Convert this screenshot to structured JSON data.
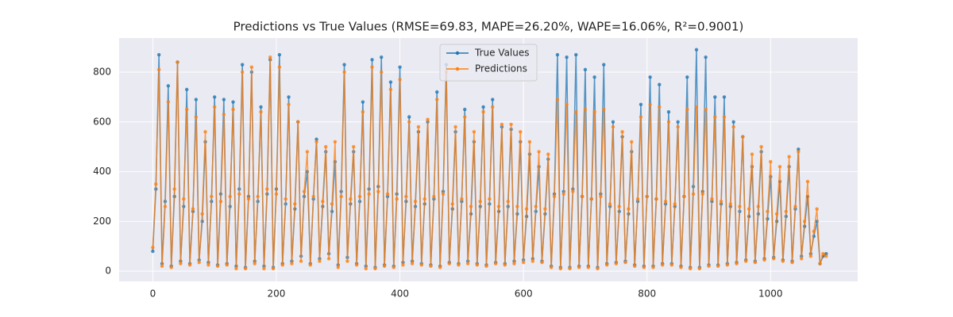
{
  "chart_data": {
    "type": "line",
    "title": "Predictions vs True Values (RMSE=69.83, MAPE=26.20%, WAPE=16.06%, R²=0.9001)",
    "x": [
      0,
      5,
      10,
      15,
      20,
      25,
      30,
      35,
      40,
      45,
      50,
      55,
      60,
      65,
      70,
      75,
      80,
      85,
      90,
      95,
      100,
      105,
      110,
      115,
      120,
      125,
      130,
      135,
      140,
      145,
      150,
      155,
      160,
      165,
      170,
      175,
      180,
      185,
      190,
      195,
      200,
      205,
      210,
      215,
      220,
      225,
      230,
      235,
      240,
      245,
      250,
      255,
      260,
      265,
      270,
      275,
      280,
      285,
      290,
      295,
      300,
      305,
      310,
      315,
      320,
      325,
      330,
      335,
      340,
      345,
      350,
      355,
      360,
      365,
      370,
      375,
      380,
      385,
      390,
      395,
      400,
      405,
      410,
      415,
      420,
      425,
      430,
      435,
      440,
      445,
      450,
      455,
      460,
      465,
      470,
      475,
      480,
      485,
      490,
      495,
      500,
      505,
      510,
      515,
      520,
      525,
      530,
      535,
      540,
      545,
      550,
      555,
      560,
      565,
      570,
      575,
      580,
      585,
      590,
      595,
      600,
      605,
      610,
      615,
      620,
      625,
      630,
      635,
      640,
      645,
      650,
      655,
      660,
      665,
      670,
      675,
      680,
      685,
      690,
      695,
      700,
      705,
      710,
      715,
      720,
      725,
      730,
      735,
      740,
      745,
      750,
      755,
      760,
      765,
      770,
      775,
      780,
      785,
      790,
      795,
      800,
      805,
      810,
      815,
      820,
      825,
      830,
      835,
      840,
      845,
      850,
      855,
      860,
      865,
      870,
      875,
      880,
      885,
      890,
      895,
      900,
      905,
      910,
      915,
      920,
      925,
      930,
      935,
      940,
      945,
      950,
      955,
      960,
      965,
      970,
      975,
      980,
      985,
      990,
      995,
      1000,
      1005,
      1010,
      1015,
      1020,
      1025,
      1030,
      1035,
      1040,
      1045,
      1050,
      1055,
      1060,
      1065,
      1070,
      1075,
      1080,
      1085,
      1090
    ],
    "series": [
      {
        "name": "True Values",
        "color": "#1f77b4",
        "values": [
          80,
          330,
          870,
          30,
          280,
          745,
          20,
          300,
          840,
          40,
          260,
          730,
          30,
          240,
          690,
          45,
          200,
          520,
          35,
          280,
          700,
          25,
          310,
          690,
          30,
          260,
          680,
          20,
          330,
          830,
          15,
          300,
          800,
          40,
          280,
          660,
          20,
          310,
          850,
          15,
          330,
          870,
          30,
          270,
          700,
          40,
          250,
          600,
          60,
          300,
          400,
          30,
          290,
          530,
          50,
          260,
          480,
          70,
          240,
          440,
          25,
          320,
          830,
          55,
          270,
          480,
          30,
          280,
          680,
          20,
          330,
          850,
          15,
          340,
          860,
          25,
          300,
          760,
          20,
          310,
          820,
          35,
          280,
          620,
          40,
          260,
          560,
          30,
          270,
          600,
          25,
          290,
          720,
          20,
          320,
          830,
          35,
          250,
          560,
          30,
          280,
          650,
          40,
          230,
          520,
          30,
          260,
          660,
          25,
          270,
          690,
          35,
          240,
          580,
          30,
          260,
          570,
          40,
          230,
          520,
          45,
          220,
          470,
          50,
          240,
          420,
          40,
          230,
          450,
          20,
          310,
          870,
          15,
          320,
          860,
          15,
          330,
          870,
          20,
          300,
          810,
          20,
          290,
          780,
          15,
          310,
          830,
          30,
          260,
          600,
          35,
          240,
          540,
          40,
          230,
          480,
          25,
          280,
          670,
          20,
          300,
          780,
          20,
          290,
          750,
          30,
          270,
          640,
          30,
          260,
          600,
          20,
          300,
          780,
          15,
          340,
          890,
          15,
          320,
          860,
          25,
          280,
          700,
          25,
          270,
          700,
          30,
          260,
          600,
          35,
          240,
          540,
          45,
          220,
          420,
          40,
          230,
          480,
          50,
          210,
          380,
          55,
          200,
          360,
          45,
          220,
          420,
          40,
          250,
          490,
          60,
          180,
          300,
          70,
          140,
          200,
          30,
          60,
          70
        ]
      },
      {
        "name": "Predictions",
        "color": "#ff7f0e",
        "values": [
          95,
          350,
          810,
          20,
          260,
          680,
          15,
          330,
          840,
          30,
          290,
          650,
          25,
          250,
          620,
          35,
          230,
          560,
          25,
          300,
          660,
          20,
          280,
          630,
          25,
          300,
          650,
          10,
          310,
          800,
          10,
          290,
          820,
          30,
          300,
          640,
          10,
          330,
          860,
          10,
          310,
          820,
          25,
          290,
          670,
          30,
          270,
          600,
          40,
          320,
          480,
          25,
          300,
          520,
          40,
          280,
          500,
          50,
          270,
          520,
          15,
          300,
          800,
          40,
          290,
          500,
          25,
          300,
          640,
          10,
          310,
          820,
          10,
          320,
          800,
          20,
          310,
          730,
          15,
          290,
          770,
          25,
          300,
          600,
          30,
          280,
          580,
          25,
          290,
          610,
          20,
          300,
          690,
          15,
          310,
          800,
          30,
          270,
          580,
          25,
          290,
          620,
          30,
          260,
          560,
          25,
          280,
          640,
          20,
          290,
          660,
          30,
          260,
          590,
          25,
          280,
          590,
          30,
          260,
          560,
          35,
          250,
          520,
          40,
          260,
          480,
          35,
          250,
          470,
          15,
          300,
          690,
          10,
          310,
          670,
          10,
          320,
          640,
          15,
          300,
          650,
          15,
          290,
          640,
          10,
          300,
          650,
          25,
          270,
          580,
          30,
          260,
          560,
          35,
          250,
          520,
          20,
          290,
          620,
          15,
          300,
          670,
          15,
          290,
          660,
          25,
          280,
          600,
          25,
          270,
          580,
          15,
          300,
          650,
          10,
          310,
          660,
          10,
          310,
          650,
          20,
          290,
          620,
          20,
          280,
          620,
          25,
          270,
          580,
          30,
          260,
          540,
          40,
          250,
          470,
          35,
          260,
          500,
          45,
          240,
          440,
          50,
          230,
          420,
          40,
          240,
          460,
          35,
          260,
          480,
          50,
          200,
          360,
          60,
          160,
          250,
          30,
          70,
          60
        ]
      }
    ],
    "xlim": [
      -54.5,
      1141
    ],
    "ylim": [
      -41,
      937
    ],
    "xticks": [
      0,
      200,
      400,
      600,
      800,
      1000
    ],
    "yticks": [
      0,
      200,
      400,
      600,
      800
    ],
    "grid": true,
    "legend": "upper center"
  }
}
